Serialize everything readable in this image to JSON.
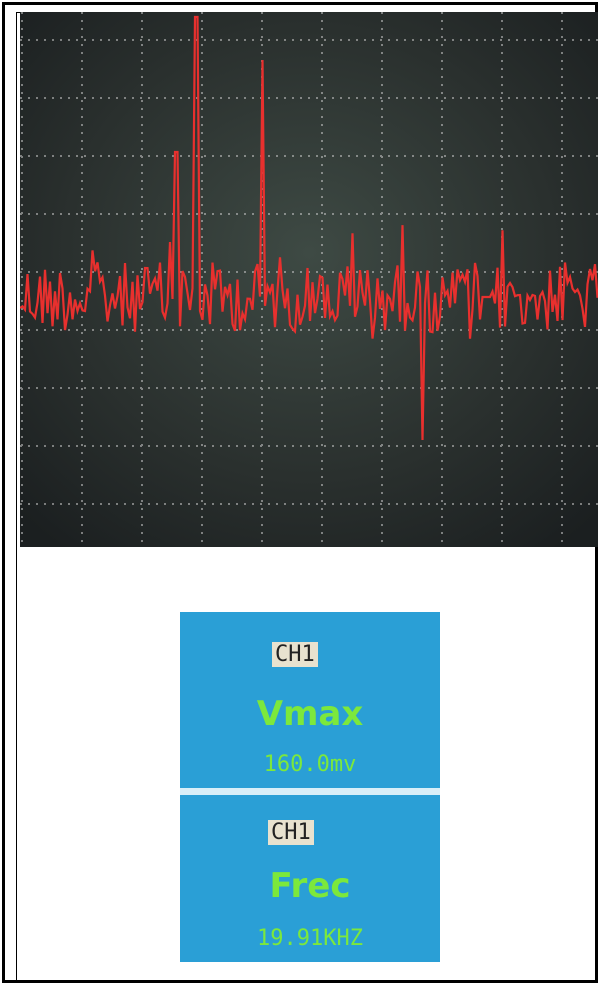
{
  "panel": {
    "measurements": [
      {
        "channel": "CH1",
        "label": "Vmax",
        "value": "160.0mv"
      },
      {
        "channel": "CH1",
        "label": "Frec",
        "value": "19.91KHZ"
      }
    ]
  }
}
